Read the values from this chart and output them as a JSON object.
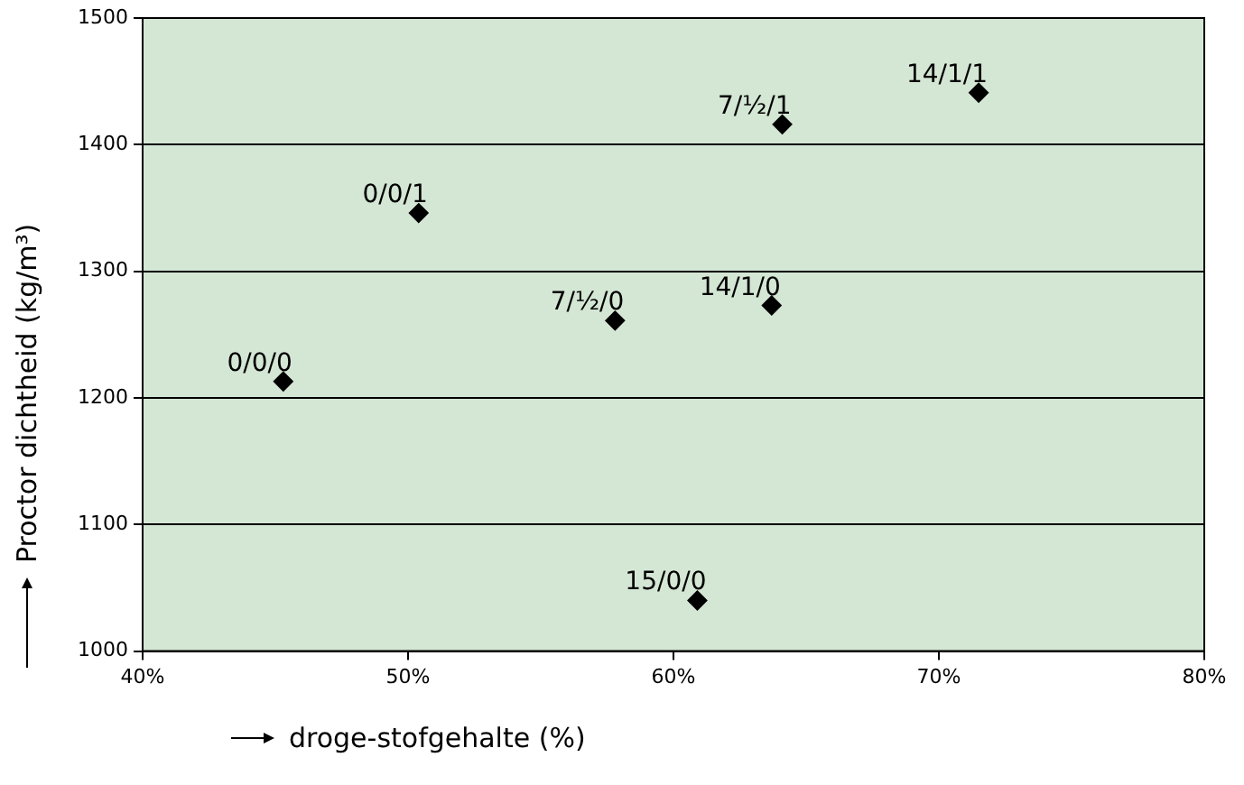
{
  "chart_data": {
    "type": "scatter",
    "xlabel": "droge-stofgehalte (%)",
    "ylabel": "Proctor dichtheid (kg/m³)",
    "x": [
      45.3,
      50.4,
      57.8,
      63.7,
      60.9,
      64.1,
      71.5
    ],
    "values": [
      1213,
      1346,
      1261,
      1273,
      1040,
      1416,
      1441
    ],
    "color": "#000000",
    "marker": "diamond",
    "xlim": [
      40,
      80
    ],
    "xticks": [
      {
        "value": 40,
        "label": "40%"
      },
      {
        "value": 50,
        "label": "50%"
      },
      {
        "value": 60,
        "label": "60%"
      },
      {
        "value": 70,
        "label": "70%"
      },
      {
        "value": 80,
        "label": "80%"
      }
    ],
    "ylim": [
      1000,
      1500
    ],
    "yticks": [
      1000,
      1100,
      1200,
      1300,
      1400,
      1500
    ],
    "grid": "y",
    "legend": false,
    "annotations": [
      {
        "text": "0/0/0",
        "x": 45.3,
        "y": 1213
      },
      {
        "text": "0/0/1",
        "x": 50.4,
        "y": 1346
      },
      {
        "text": "7/½/0",
        "x": 57.8,
        "y": 1261
      },
      {
        "text": "14/1/0",
        "x": 63.7,
        "y": 1273
      },
      {
        "text": "15/0/0",
        "x": 60.9,
        "y": 1040
      },
      {
        "text": "7/½/1",
        "x": 64.1,
        "y": 1416
      },
      {
        "text": "14/1/1",
        "x": 71.5,
        "y": 1441
      }
    ]
  }
}
